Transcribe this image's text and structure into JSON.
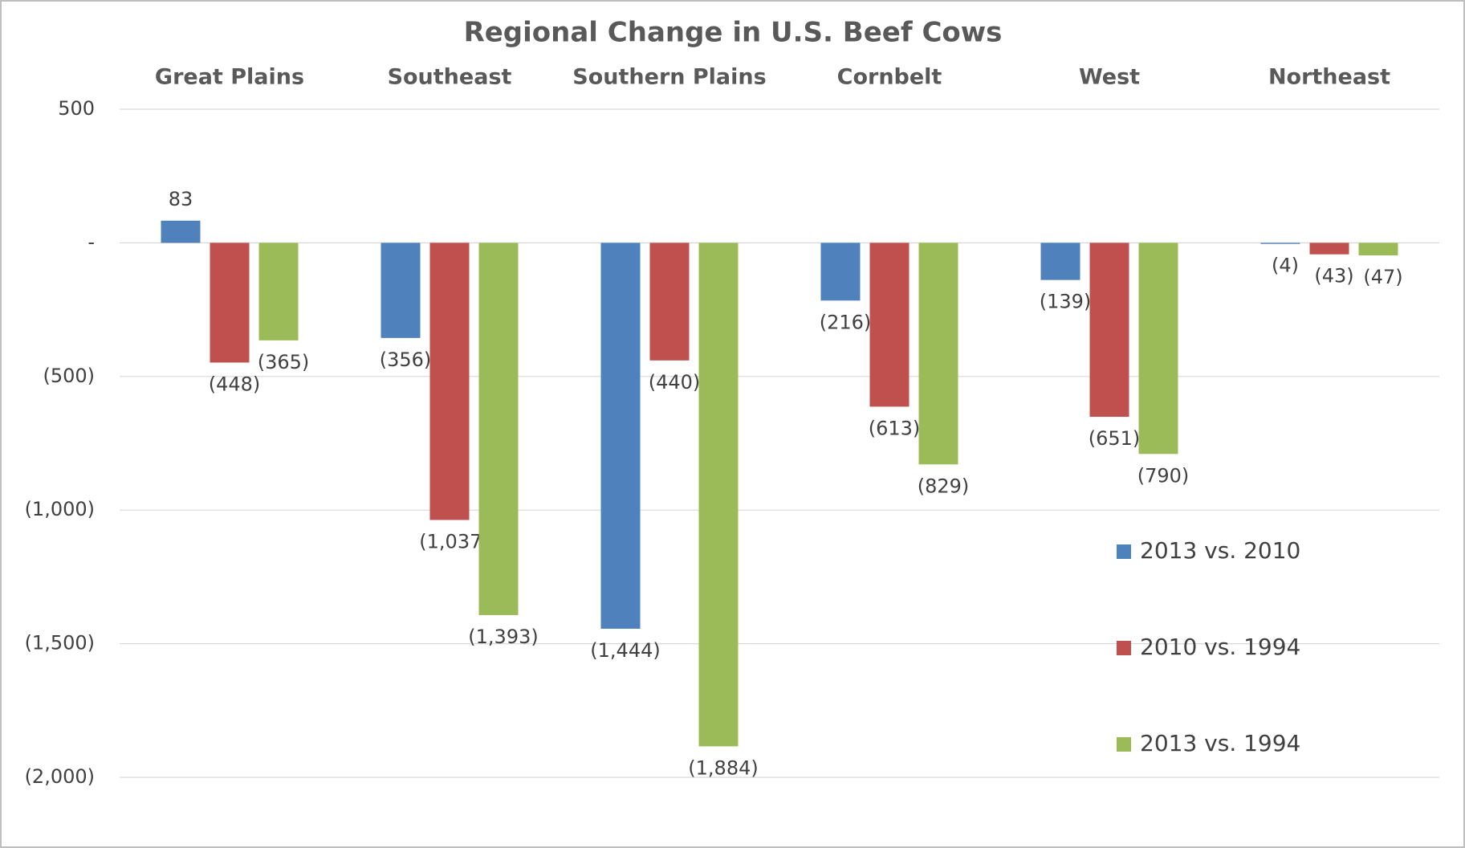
{
  "chart_data": {
    "type": "bar",
    "title": "Regional Change in U.S. Beef Cows",
    "categories": [
      "Great Plains",
      "Southeast",
      "Southern Plains",
      "Cornbelt",
      "West",
      "Northeast"
    ],
    "series": [
      {
        "name": "2013 vs. 2010",
        "color": "#4f81bd",
        "values": [
          83,
          -356,
          -1444,
          -216,
          -139,
          -4
        ],
        "value_labels": [
          "83",
          "(356)",
          "(1,444)",
          "(216)",
          "(139)",
          "(4)"
        ]
      },
      {
        "name": "2010 vs. 1994",
        "color": "#c0504d",
        "values": [
          -448,
          -1037,
          -440,
          -613,
          -651,
          -43
        ],
        "value_labels": [
          "(448)",
          "(1,037)",
          "(440)",
          "(613)",
          "(651)",
          "(43)"
        ]
      },
      {
        "name": "2013 vs. 1994",
        "color": "#9bbb59",
        "values": [
          -365,
          -1393,
          -1884,
          -829,
          -790,
          -47
        ],
        "value_labels": [
          "(365)",
          "(1,393)",
          "(1,884)",
          "(829)",
          "(790)",
          "(47)"
        ]
      }
    ],
    "ylim": [
      -2000,
      500
    ],
    "yticks": [
      500,
      {
        "value": 0,
        "label": "-"
      },
      {
        "value": -500,
        "label": "(500)"
      },
      {
        "value": -1000,
        "label": "(1,000)"
      },
      {
        "value": -1500,
        "label": "(1,500)"
      },
      {
        "value": -2000,
        "label": "(2,000)"
      }
    ],
    "grid": true,
    "legend": "right"
  }
}
